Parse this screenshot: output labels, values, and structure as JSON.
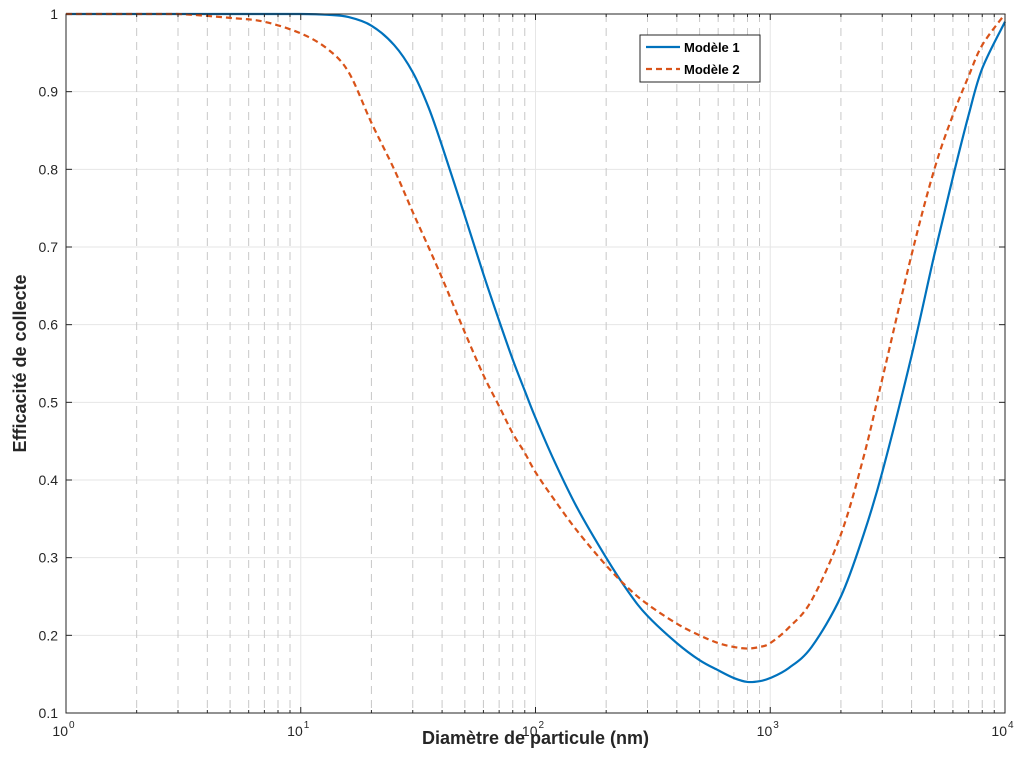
{
  "chart_data": {
    "type": "line",
    "xlabel": "Diamètre de particule (nm)",
    "ylabel": "Efficacité de collecte",
    "xscale": "log",
    "xlim": [
      1,
      10000
    ],
    "ylim": [
      0.1,
      1
    ],
    "x_ticks": [
      {
        "base": "10",
        "exp": "0"
      },
      {
        "base": "10",
        "exp": "1"
      },
      {
        "base": "10",
        "exp": "2"
      },
      {
        "base": "10",
        "exp": "3"
      },
      {
        "base": "10",
        "exp": "4"
      }
    ],
    "y_ticks": [
      "0.1",
      "0.2",
      "0.3",
      "0.4",
      "0.5",
      "0.6",
      "0.7",
      "0.8",
      "0.9",
      "1"
    ],
    "grid": true,
    "legend_position": "top-right",
    "series": [
      {
        "name": "Modèle 1",
        "color": "#0072BD",
        "style": "solid",
        "x": [
          1,
          5,
          10,
          13,
          16,
          20,
          25,
          30,
          35,
          40,
          50,
          60,
          70,
          80,
          90,
          100,
          120,
          150,
          200,
          250,
          300,
          400,
          500,
          600,
          700,
          800,
          900,
          1000,
          1200,
          1500,
          2000,
          2500,
          3000,
          4000,
          5000,
          6000,
          7000,
          8000,
          10000
        ],
        "y": [
          1.0,
          1.0,
          1.0,
          0.999,
          0.996,
          0.985,
          0.96,
          0.925,
          0.88,
          0.83,
          0.74,
          0.665,
          0.605,
          0.555,
          0.515,
          0.48,
          0.425,
          0.365,
          0.3,
          0.255,
          0.225,
          0.19,
          0.168,
          0.155,
          0.145,
          0.14,
          0.141,
          0.145,
          0.158,
          0.185,
          0.25,
          0.33,
          0.41,
          0.56,
          0.69,
          0.79,
          0.87,
          0.93,
          0.99
        ]
      },
      {
        "name": "Modèle 2",
        "color": "#D95319",
        "style": "dashed",
        "x": [
          1,
          2,
          3,
          5,
          7,
          10,
          13,
          16,
          20,
          25,
          30,
          35,
          40,
          50,
          60,
          70,
          80,
          90,
          100,
          120,
          150,
          200,
          250,
          300,
          400,
          500,
          600,
          700,
          800,
          900,
          1000,
          1200,
          1500,
          2000,
          2500,
          3000,
          4000,
          5000,
          6000,
          7000,
          8000,
          10000
        ],
        "y": [
          1.0,
          1.0,
          1.0,
          0.995,
          0.99,
          0.975,
          0.955,
          0.925,
          0.86,
          0.8,
          0.745,
          0.7,
          0.66,
          0.59,
          0.535,
          0.495,
          0.46,
          0.435,
          0.41,
          0.375,
          0.335,
          0.29,
          0.26,
          0.24,
          0.215,
          0.2,
          0.19,
          0.185,
          0.183,
          0.185,
          0.19,
          0.21,
          0.245,
          0.33,
          0.43,
          0.53,
          0.69,
          0.8,
          0.87,
          0.92,
          0.96,
          1.0
        ]
      }
    ]
  }
}
